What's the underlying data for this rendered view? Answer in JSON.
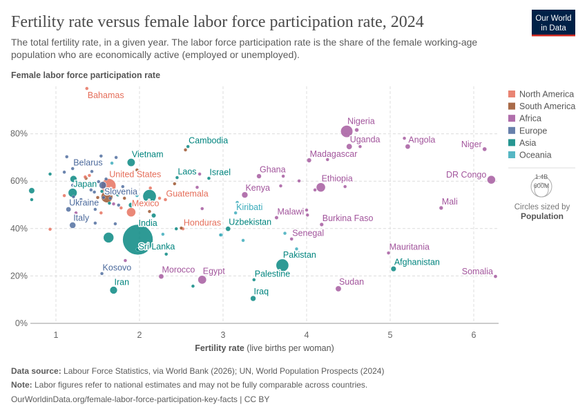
{
  "header": {
    "title": "Fertility rate versus female labor force participation rate, 2024",
    "subtitle_line1": "The total fertility rate, in a given year. The labor force participation rate is the share of the female working-age",
    "subtitle_line2": "population who are economically active (employed or unemployed).",
    "logo_line1": "Our World",
    "logo_line2": "in Data",
    "logo_bg": "#002147",
    "logo_accent": "#CE261E"
  },
  "legend": {
    "items": [
      {
        "key": "NA",
        "label": "North America",
        "color": "#E56E5A"
      },
      {
        "key": "SA",
        "label": "South America",
        "color": "#9A5129"
      },
      {
        "key": "AF",
        "label": "Africa",
        "color": "#A2559C"
      },
      {
        "key": "EU",
        "label": "Europe",
        "color": "#4C6A9C"
      },
      {
        "key": "AS",
        "label": "Asia",
        "color": "#00847E"
      },
      {
        "key": "OC",
        "label": "Oceania",
        "color": "#38AABA"
      }
    ],
    "size_big": "1.4B",
    "size_small": "600M",
    "size_caption": "Circles sized by",
    "size_variable": "Population"
  },
  "chart_data": {
    "type": "scatter",
    "title": "Fertility rate versus female labor force participation rate, 2024",
    "xlabel_bold": "Fertility rate",
    "xlabel_rest": " (live births per woman)",
    "ylabel": "Female labor force participation rate",
    "xlim": [
      0.7,
      6.3
    ],
    "ylim": [
      0,
      100
    ],
    "xticks": [
      "1",
      "2",
      "3",
      "4",
      "5",
      "6"
    ],
    "yticks": [
      "0%",
      "20%",
      "40%",
      "60%",
      "80%"
    ],
    "grid": true,
    "legend_position": "right",
    "size_variable": "Population (millions)",
    "point_fields": [
      "label",
      "fertility_rate",
      "female_lfp_percent",
      "region",
      "population_millions"
    ],
    "points": [
      [
        "Bahamas",
        1.37,
        99.1,
        "NA",
        0.4
      ],
      [
        "Nigeria",
        4.48,
        81.0,
        "AF",
        230
      ],
      [
        "Uganda",
        4.51,
        74.6,
        "AF",
        50
      ],
      [
        "Angola",
        5.21,
        74.6,
        "AF",
        37
      ],
      [
        "Niger",
        6.13,
        73.5,
        "AF",
        27
      ],
      [
        "Madagascar",
        4.03,
        68.8,
        "AF",
        31
      ],
      [
        "DR Congo",
        6.21,
        60.6,
        "AF",
        110
      ],
      [
        "Ghana",
        3.43,
        62.1,
        "AF",
        34
      ],
      [
        "Ethiopia",
        4.17,
        57.4,
        "AF",
        130
      ],
      [
        "Kenya",
        3.26,
        54.2,
        "AF",
        56
      ],
      [
        "Mali",
        5.61,
        48.7,
        "AF",
        24
      ],
      [
        "Malawi",
        3.64,
        44.6,
        "AF",
        21
      ],
      [
        "Burkina Faso",
        4.18,
        41.7,
        "AF",
        23
      ],
      [
        "Kiribati",
        3.15,
        46.6,
        "OC",
        0.1
      ],
      [
        "Uzbekistan",
        3.06,
        39.9,
        "AS",
        36
      ],
      [
        "Senegal",
        3.82,
        35.6,
        "AF",
        18
      ],
      [
        "Mauritania",
        4.98,
        29.7,
        "AF",
        5
      ],
      [
        "Pakistan",
        3.71,
        24.5,
        "AS",
        250
      ],
      [
        "Afghanistan",
        5.04,
        23.0,
        "AS",
        42
      ],
      [
        "Somalia",
        6.26,
        19.8,
        "AF",
        19
      ],
      [
        "Palestine",
        3.37,
        18.4,
        "AS",
        5
      ],
      [
        "Sudan",
        4.38,
        14.6,
        "AF",
        50
      ],
      [
        "Iraq",
        3.36,
        10.5,
        "AS",
        45
      ],
      [
        "Egypt",
        2.75,
        18.4,
        "AF",
        115
      ],
      [
        "Morocco",
        2.26,
        19.8,
        "AF",
        38
      ],
      [
        "Iran",
        1.69,
        14.0,
        "AS",
        90
      ],
      [
        "Kosovo",
        1.55,
        21.0,
        "EU",
        1.6
      ],
      [
        "India",
        1.98,
        35.3,
        "AS",
        1450
      ],
      [
        "Sri Lanka",
        1.98,
        31.2,
        "AS",
        23
      ],
      [
        "Honduras",
        2.52,
        39.9,
        "NA",
        10.6
      ],
      [
        "Italy",
        1.2,
        41.4,
        "EU",
        59
      ],
      [
        "Mexico",
        1.9,
        46.9,
        "NA",
        130
      ],
      [
        "Guatemala",
        2.31,
        52.2,
        "NA",
        18
      ],
      [
        "Ukraine",
        1.15,
        48.1,
        "EU",
        38
      ],
      [
        "Slovenia",
        1.57,
        53.1,
        "EU",
        2
      ],
      [
        "Japan",
        1.2,
        55.1,
        "AS",
        124
      ],
      [
        "Belarus",
        1.2,
        65.3,
        "EU",
        9
      ],
      [
        "United States",
        1.63,
        58.0,
        "NA",
        340
      ],
      [
        "Vietnam",
        1.9,
        67.9,
        "AS",
        100
      ],
      [
        "Cambodia",
        2.58,
        74.6,
        "AS",
        17
      ],
      [
        "Laos",
        2.45,
        61.5,
        "AS",
        7.6
      ],
      [
        "Israel",
        2.83,
        61.2,
        "AS",
        10
      ],
      [
        "",
        1.13,
        70.3,
        "EU",
        5
      ],
      [
        "",
        1.54,
        70.6,
        "EU",
        5
      ],
      [
        "",
        1.72,
        70.0,
        "EU",
        5
      ],
      [
        "",
        1.67,
        67.6,
        "OC",
        5
      ],
      [
        "",
        0.93,
        63.0,
        "AS",
        5
      ],
      [
        "",
        1.1,
        63.8,
        "EU",
        5
      ],
      [
        "",
        1.43,
        64.1,
        "EU",
        8
      ],
      [
        "",
        1.97,
        64.7,
        "SA",
        10
      ],
      [
        "",
        1.21,
        60.9,
        "AS",
        70
      ],
      [
        "",
        1.35,
        61.8,
        "NA",
        3
      ],
      [
        "",
        1.36,
        61.2,
        "SA",
        5
      ],
      [
        "",
        1.4,
        62.4,
        "NA",
        3
      ],
      [
        "",
        1.51,
        59.8,
        "EU",
        10
      ],
      [
        "",
        1.6,
        60.9,
        "EU",
        10
      ],
      [
        "",
        1.56,
        58.3,
        "EU",
        84
      ],
      [
        "",
        1.2,
        58.3,
        "EU",
        5
      ],
      [
        "",
        1.8,
        57.7,
        "EU",
        5
      ],
      [
        "",
        2.13,
        57.1,
        "NA",
        3
      ],
      [
        "",
        2.42,
        58.9,
        "SA",
        5
      ],
      [
        "",
        1.21,
        53.4,
        "EU",
        10
      ],
      [
        "",
        1.1,
        53.9,
        "NA",
        3
      ],
      [
        "",
        1.42,
        56.3,
        "EU",
        10
      ],
      [
        "",
        1.46,
        55.4,
        "EU",
        10
      ],
      [
        "",
        1.55,
        55.7,
        "AS",
        5
      ],
      [
        "",
        1.61,
        53.4,
        "SA",
        212
      ],
      [
        "",
        1.5,
        53.1,
        "SA",
        10
      ],
      [
        "",
        1.65,
        52.8,
        "EU",
        5
      ],
      [
        "",
        1.74,
        54.2,
        "AS",
        5
      ],
      [
        "",
        1.82,
        52.8,
        "SA",
        3
      ],
      [
        "",
        1.97,
        53.9,
        "OC",
        3
      ],
      [
        "",
        2.12,
        53.6,
        "AS",
        280
      ],
      [
        "",
        2.24,
        52.8,
        "NA",
        3
      ],
      [
        "",
        1.3,
        52.2,
        "EU",
        10
      ],
      [
        "",
        1.69,
        50.4,
        "AF",
        3
      ],
      [
        "",
        1.64,
        50.7,
        "AS",
        5
      ],
      [
        "",
        1.75,
        49.9,
        "EU",
        5
      ],
      [
        "",
        1.78,
        48.7,
        "NA",
        3
      ],
      [
        "",
        1.9,
        49.9,
        "AS",
        40
      ],
      [
        "",
        2.12,
        47.2,
        "SA",
        5
      ],
      [
        "",
        2.17,
        45.5,
        "AS",
        30
      ],
      [
        "",
        1.24,
        46.6,
        "AF",
        2
      ],
      [
        "",
        1.47,
        48.1,
        "EU",
        5
      ],
      [
        "",
        1.54,
        46.6,
        "NA",
        3
      ],
      [
        "",
        1.47,
        42.3,
        "EU",
        5
      ],
      [
        "",
        1.71,
        42.0,
        "EU",
        5
      ],
      [
        "",
        0.93,
        39.7,
        "NA",
        3
      ],
      [
        "",
        2.44,
        39.9,
        "AS",
        3
      ],
      [
        "",
        2.5,
        40.2,
        "SA",
        3
      ],
      [
        "",
        2.79,
        43.1,
        "OC",
        2
      ],
      [
        "",
        2.28,
        37.6,
        "OC",
        3
      ],
      [
        "",
        2.97,
        37.3,
        "OC",
        2
      ],
      [
        "",
        1.63,
        36.2,
        "AS",
        170
      ],
      [
        "",
        2.32,
        29.2,
        "AS",
        5
      ],
      [
        "",
        1.83,
        26.5,
        "AF",
        3
      ],
      [
        "",
        2.64,
        15.7,
        "AS",
        5
      ],
      [
        "",
        0.71,
        56.0,
        "AS",
        52
      ],
      [
        "",
        0.71,
        52.2,
        "AS",
        5
      ],
      [
        "",
        3.91,
        60.1,
        "AF",
        5
      ],
      [
        "",
        3.72,
        62.1,
        "AF",
        5
      ],
      [
        "",
        3.69,
        58.0,
        "AF",
        5
      ],
      [
        "",
        4.1,
        56.3,
        "AF",
        8
      ],
      [
        "",
        4.46,
        57.7,
        "AF",
        8
      ],
      [
        "",
        4.25,
        69.1,
        "AF",
        5
      ],
      [
        "",
        4.6,
        81.6,
        "AF",
        25
      ],
      [
        "",
        4.64,
        74.6,
        "AF",
        5
      ],
      [
        "",
        5.17,
        78.1,
        "AF",
        5
      ],
      [
        "",
        4.0,
        47.8,
        "AF",
        5
      ],
      [
        "",
        4.01,
        45.7,
        "AF",
        5
      ],
      [
        "",
        3.17,
        51.0,
        "OC",
        3
      ],
      [
        "",
        3.24,
        35.0,
        "OC",
        3
      ],
      [
        "",
        3.74,
        38.0,
        "OC",
        3
      ],
      [
        "",
        3.88,
        31.4,
        "OC",
        3
      ],
      [
        "",
        2.55,
        73.2,
        "SA",
        5
      ],
      [
        "",
        2.72,
        63.0,
        "AF",
        3
      ],
      [
        "",
        2.69,
        57.4,
        "AF",
        3
      ],
      [
        "",
        2.75,
        48.4,
        "AF",
        3
      ],
      [
        "",
        2.98,
        37.3,
        "OC",
        3
      ]
    ]
  },
  "footer": {
    "source_label": "Data source:",
    "source_text": " Labour Force Statistics, via World Bank (2026); UN, World Population Prospects (2024)",
    "note_label": "Note:",
    "note_text": " Labor figures refer to national estimates and may not be fully comparable across countries.",
    "url": "OurWorldinData.org/female-labor-force-participation-key-facts | CC BY"
  }
}
